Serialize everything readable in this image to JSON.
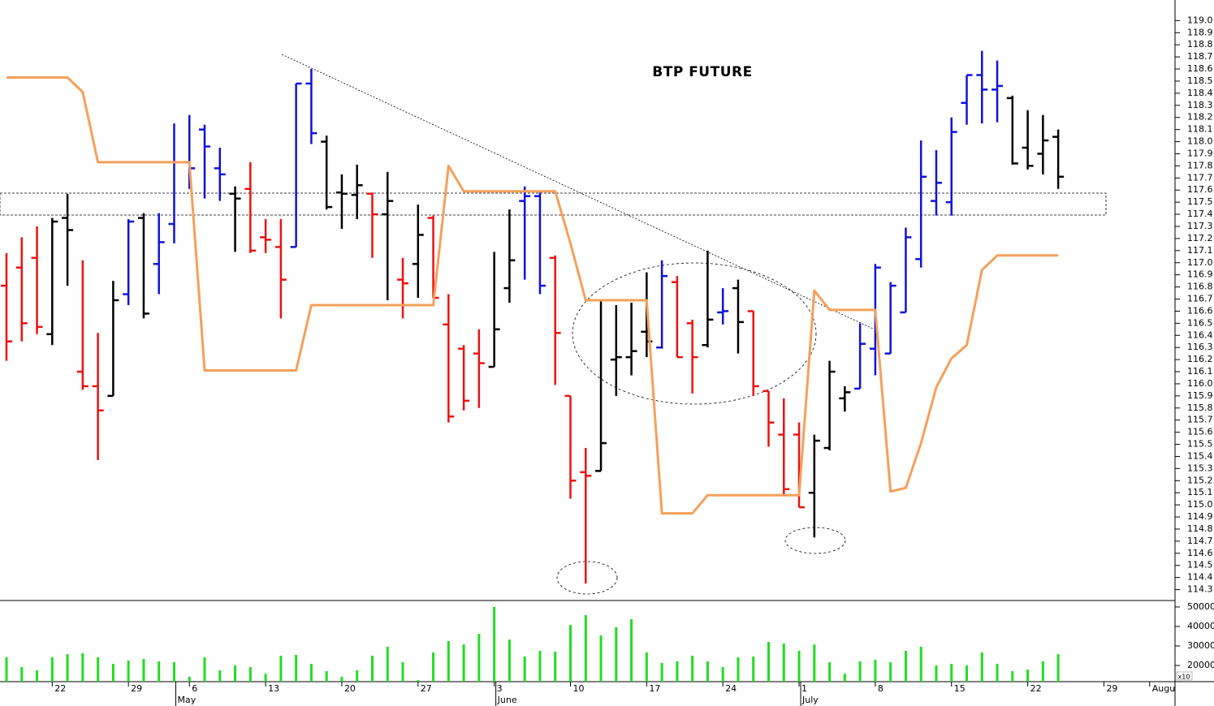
{
  "chart_data": [
    {
      "type": "ohlc",
      "title": "BTP FUTURE",
      "categories": [
        null,
        null,
        null,
        "22",
        null,
        null,
        null,
        null,
        "29",
        null,
        null,
        null,
        "6",
        null,
        null,
        null,
        null,
        "13",
        null,
        null,
        null,
        null,
        "20",
        null,
        null,
        null,
        null,
        "27",
        null,
        null,
        null,
        null,
        "3",
        null,
        null,
        null,
        null,
        "10",
        null,
        null,
        null,
        null,
        "17",
        null,
        null,
        null,
        null,
        "24",
        null,
        null,
        null,
        null,
        "1",
        null,
        null,
        null,
        null,
        "8",
        null,
        null,
        null,
        null,
        "15",
        null,
        null,
        null,
        null,
        "22",
        null,
        null,
        null,
        null,
        "29",
        null,
        null,
        "Augu",
        null
      ],
      "months": [
        null,
        null,
        null,
        null,
        null,
        null,
        null,
        null,
        null,
        null,
        null,
        "May",
        null,
        null,
        null,
        null,
        null,
        null,
        null,
        null,
        null,
        null,
        null,
        null,
        null,
        null,
        null,
        null,
        null,
        null,
        null,
        null,
        "June",
        null,
        null,
        null,
        null,
        null,
        null,
        null,
        null,
        null,
        null,
        null,
        null,
        null,
        null,
        null,
        null,
        null,
        null,
        null,
        "July",
        null,
        null,
        null,
        null,
        null,
        null,
        null,
        null,
        null,
        null,
        null,
        null,
        null,
        null,
        null,
        null,
        null,
        null,
        null,
        null,
        null,
        null,
        null,
        null
      ],
      "open": [
        116.81,
        116.96,
        117.04,
        116.41,
        117.37,
        116.1,
        115.98,
        115.9,
        116.74,
        117.37,
        116.99,
        117.32,
        117.83,
        118.1,
        117.78,
        117.57,
        117.61,
        117.21,
        117.13,
        117.13,
        118.48,
        118.0,
        117.58,
        117.56,
        117.57,
        117.4,
        116.86,
        116.99,
        117.37,
        116.49,
        116.29,
        116.25,
        116.14,
        116.79,
        117.51,
        117.55,
        117.04,
        115.9,
        115.27,
        115.28,
        116.2,
        116.22,
        116.43,
        116.3,
        116.84,
        116.5,
        116.32,
        116.59,
        116.79,
        116.6,
        115.94,
        115.58,
        115.58,
        115.1,
        115.47,
        115.88,
        115.96,
        116.29,
        116.25,
        116.59,
        117.03,
        117.51,
        117.5,
        118.32,
        118.55,
        118.43,
        118.36,
        117.95,
        117.9,
        118.04,
        null,
        null,
        null,
        null,
        null,
        null,
        null
      ],
      "high": [
        117.08,
        117.21,
        117.3,
        117.37,
        117.57,
        117.02,
        116.42,
        116.85,
        117.36,
        117.41,
        117.41,
        118.15,
        118.22,
        118.14,
        117.95,
        117.63,
        117.83,
        117.36,
        117.36,
        118.48,
        118.6,
        118.05,
        117.73,
        117.81,
        117.58,
        117.75,
        117.04,
        117.48,
        117.39,
        116.74,
        116.32,
        116.45,
        117.09,
        117.44,
        117.63,
        117.58,
        117.06,
        115.9,
        115.47,
        116.69,
        116.65,
        116.67,
        116.92,
        117.02,
        116.89,
        116.53,
        117.1,
        116.79,
        116.86,
        116.6,
        115.94,
        115.88,
        115.68,
        115.58,
        116.19,
        115.98,
        116.5,
        116.99,
        116.84,
        117.29,
        118.01,
        117.93,
        118.2,
        118.55,
        118.75,
        118.67,
        118.38,
        118.26,
        118.22,
        118.1,
        null,
        null,
        null,
        null,
        null,
        null,
        null
      ],
      "low": [
        116.19,
        116.35,
        116.41,
        116.32,
        116.81,
        115.95,
        115.37,
        115.9,
        116.65,
        116.54,
        116.74,
        117.16,
        117.61,
        117.53,
        117.51,
        117.09,
        117.08,
        117.08,
        116.54,
        117.13,
        117.98,
        117.44,
        117.28,
        117.36,
        117.04,
        116.69,
        116.54,
        116.71,
        116.71,
        115.68,
        115.78,
        115.8,
        116.14,
        116.67,
        116.86,
        116.74,
        115.99,
        115.05,
        114.35,
        115.28,
        115.9,
        116.07,
        116.22,
        116.29,
        116.22,
        115.92,
        116.3,
        116.49,
        116.25,
        115.9,
        115.48,
        115.08,
        114.98,
        114.73,
        115.45,
        115.77,
        115.96,
        116.07,
        116.25,
        116.59,
        116.96,
        117.39,
        117.39,
        118.14,
        118.15,
        118.16,
        117.81,
        117.77,
        117.73,
        117.61,
        null,
        null,
        null,
        null,
        null,
        null,
        null
      ],
      "close": [
        116.35,
        116.5,
        116.47,
        117.34,
        117.27,
        115.98,
        115.78,
        116.69,
        117.34,
        116.58,
        117.17,
        117.83,
        117.78,
        117.96,
        117.73,
        117.53,
        117.1,
        117.19,
        116.86,
        118.48,
        118.07,
        117.46,
        117.57,
        117.64,
        117.4,
        117.51,
        116.83,
        117.23,
        116.71,
        115.73,
        115.86,
        116.17,
        116.45,
        117.02,
        117.55,
        116.81,
        116.42,
        115.2,
        115.24,
        115.51,
        116.22,
        116.27,
        116.35,
        116.89,
        116.22,
        116.22,
        116.53,
        116.6,
        116.51,
        115.98,
        115.68,
        115.13,
        114.98,
        115.53,
        116.1,
        115.93,
        116.33,
        116.96,
        116.81,
        117.21,
        117.71,
        117.66,
        118.08,
        118.55,
        118.43,
        118.46,
        117.82,
        117.8,
        118.01,
        117.71,
        null,
        null,
        null,
        null,
        null,
        null,
        null
      ],
      "bar_colors": [
        "#ee1111",
        "#ee1111",
        "#ee1111",
        "#000000",
        "#000000",
        "#ee1111",
        "#ee1111",
        "#000000",
        "#1111dd",
        "#000000",
        "#1111dd",
        "#1111dd",
        "#1111dd",
        "#1111dd",
        "#1111dd",
        "#000000",
        "#ee1111",
        "#ee1111",
        "#ee1111",
        "#1111dd",
        "#1111dd",
        "#000000",
        "#000000",
        "#000000",
        "#ee1111",
        "#000000",
        "#ee1111",
        "#000000",
        "#ee1111",
        "#ee1111",
        "#ee1111",
        "#ee1111",
        "#000000",
        "#000000",
        "#1111dd",
        "#1111dd",
        "#ee1111",
        "#ee1111",
        "#ee1111",
        "#000000",
        "#000000",
        "#000000",
        "#000000",
        "#1111dd",
        "#ee1111",
        "#ee1111",
        "#000000",
        "#1111dd",
        "#000000",
        "#ee1111",
        "#ee1111",
        "#ee1111",
        "#ee1111",
        "#000000",
        "#000000",
        "#000000",
        "#1111dd",
        "#1111dd",
        "#1111dd",
        "#1111dd",
        "#1111dd",
        "#1111dd",
        "#1111dd",
        "#1111dd",
        "#1111dd",
        "#1111dd",
        "#000000",
        "#000000",
        "#000000",
        "#000000",
        null,
        null,
        null,
        null,
        null,
        null,
        null
      ],
      "line": {
        "color": "#f5a05a",
        "values": [
          118.53,
          118.53,
          118.53,
          118.53,
          118.53,
          118.41,
          117.83,
          117.83,
          117.83,
          117.83,
          117.83,
          117.83,
          117.83,
          116.11,
          116.11,
          116.11,
          116.11,
          116.11,
          116.11,
          116.11,
          116.65,
          116.65,
          116.65,
          116.65,
          116.65,
          116.65,
          116.65,
          116.65,
          116.65,
          117.8,
          117.59,
          117.59,
          117.59,
          117.59,
          117.59,
          117.59,
          117.59,
          117.16,
          116.69,
          116.69,
          116.69,
          116.69,
          116.69,
          114.93,
          114.93,
          114.93,
          115.08,
          115.08,
          115.08,
          115.08,
          115.08,
          115.08,
          115.08,
          116.77,
          116.61,
          116.61,
          116.61,
          116.61,
          115.11,
          115.14,
          115.51,
          115.97,
          116.21,
          116.32,
          116.94,
          117.06,
          117.06,
          117.06,
          117.06,
          117.06,
          null,
          null,
          null,
          null,
          null,
          null,
          null
        ]
      },
      "ylim": [
        114.21,
        119.17
      ],
      "yticks": [
        114.3,
        114.4,
        114.5,
        114.6,
        114.7,
        114.8,
        114.9,
        {
          "value": 115,
          "label": "115.0"
        },
        115.1,
        115.2,
        115.3,
        115.4,
        115.5,
        115.6,
        115.7,
        115.8,
        115.9,
        {
          "value": 116,
          "label": "116.0"
        },
        116.1,
        116.2,
        116.3,
        116.4,
        116.5,
        116.6,
        116.7,
        116.8,
        116.9,
        {
          "value": 117,
          "label": "117.0"
        },
        117.1,
        117.2,
        117.3,
        117.4,
        117.5,
        117.6,
        117.7,
        117.8,
        117.9,
        {
          "value": 118,
          "label": "118.0"
        },
        118.1,
        118.2,
        118.3,
        118.4,
        118.5,
        118.6,
        118.7,
        118.8,
        118.9,
        {
          "value": 119,
          "label": "119.0"
        }
      ]
    },
    {
      "type": "bar",
      "color": "#22dd22",
      "scale_label": "x10",
      "values": [
        24200,
        19200,
        17500,
        24200,
        25800,
        26250,
        24200,
        20800,
        22500,
        23300,
        22100,
        21700,
        14200,
        24200,
        17500,
        20000,
        19200,
        15800,
        25000,
        25400,
        20800,
        17100,
        14200,
        17500,
        25000,
        29600,
        21700,
        12500,
        26700,
        32500,
        30800,
        36200,
        50000,
        33300,
        24600,
        27500,
        27100,
        40800,
        45800,
        35400,
        39600,
        43750,
        26700,
        21250,
        22100,
        25000,
        22100,
        19200,
        24200,
        24600,
        32100,
        31250,
        27500,
        30800,
        21700,
        15800,
        22100,
        22900,
        21700,
        27500,
        29600,
        20000,
        20800,
        20000,
        26700,
        20800,
        17100,
        17900,
        22100,
        25800,
        null,
        null,
        null,
        null,
        null,
        null,
        null
      ],
      "ylim": [
        11700,
        53300
      ],
      "yticks": [
        20000,
        30000,
        40000,
        50000
      ]
    }
  ]
}
